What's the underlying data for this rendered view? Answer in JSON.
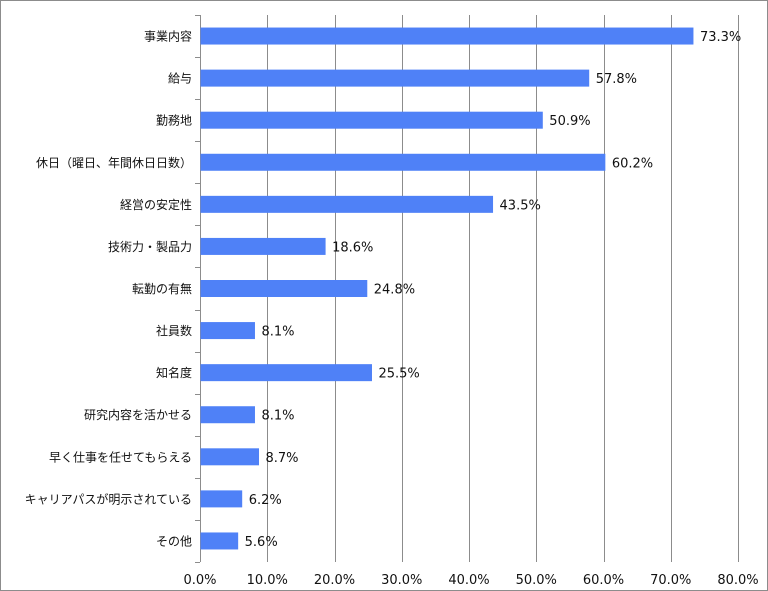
{
  "chart_data": {
    "type": "bar",
    "orientation": "horizontal",
    "categories": [
      "事業内容",
      "給与",
      "勤務地",
      "休日（曜日、年間休日日数）",
      "経営の安定性",
      "技術力・製品力",
      "転勤の有無",
      "社員数",
      "知名度",
      "研究内容を活かせる",
      "早く仕事を任せてもらえる",
      "キャリアパスが明示されている",
      "その他"
    ],
    "values": [
      73.3,
      57.8,
      50.9,
      60.2,
      43.5,
      18.6,
      24.8,
      8.1,
      25.5,
      8.1,
      8.7,
      6.2,
      5.6
    ],
    "value_labels": [
      "73.3%",
      "57.8%",
      "50.9%",
      "60.2%",
      "43.5%",
      "18.6%",
      "24.8%",
      "8.1%",
      "25.5%",
      "8.1%",
      "8.7%",
      "6.2%",
      "5.6%"
    ],
    "xlim": [
      0,
      80
    ],
    "x_ticks": [
      0,
      10,
      20,
      30,
      40,
      50,
      60,
      70,
      80
    ],
    "x_tick_labels": [
      "0.0%",
      "10.0%",
      "20.0%",
      "30.0%",
      "40.0%",
      "50.0%",
      "60.0%",
      "70.0%",
      "80.0%"
    ],
    "title": "",
    "xlabel": "",
    "ylabel": "",
    "grid": "vertical",
    "legend": "none",
    "bar_color": "#4f81f7",
    "grid_color": "#8c8c8c"
  }
}
